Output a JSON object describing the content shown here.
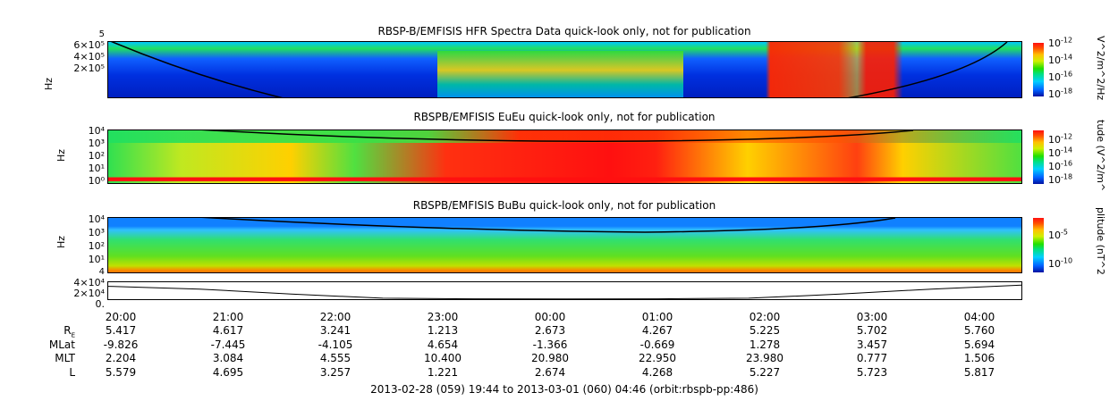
{
  "chart_data": [
    {
      "type": "heatmap",
      "title": "RBSP-B/EMFISIS  HFR Spectra Data quick-look only, not for publication",
      "ylabel": "Hz",
      "yticks": [
        "6×10⁵",
        "4×10⁵",
        "2×10⁵"
      ],
      "ytop_label": "5",
      "colorbar_label": "V^2/m^2/Hz",
      "colorbar_ticks": [
        "10-12",
        "10-14",
        "10-16",
        "10-18"
      ]
    },
    {
      "type": "heatmap",
      "title": "RBSPB/EMFISIS  EuEu quick-look only, not for publication",
      "ylabel": "Hz",
      "yticks": [
        "10⁴",
        "10³",
        "10²",
        "10¹",
        "10⁰"
      ],
      "colorbar_label": "tude (V^2/m^",
      "colorbar_ticks": [
        "10-12",
        "10-14",
        "10-16",
        "10-18"
      ]
    },
    {
      "type": "heatmap",
      "title": "RBSPB/EMFISIS  BuBu quick-look only, not for publication",
      "ylabel": "Hz",
      "yticks": [
        "10⁴",
        "10³",
        "10²",
        "10¹"
      ],
      "colorbar_label": "plitude (nT^2",
      "colorbar_ticks": [
        "10-5",
        "10-10"
      ]
    },
    {
      "type": "line",
      "yticks": [
        "4×10⁴",
        "2×10⁴",
        "0."
      ],
      "ytop_label": "4",
      "x": [
        "19:44",
        "20:00",
        "21:00",
        "22:00",
        "23:00",
        "00:00",
        "01:00",
        "02:00",
        "03:00",
        "04:00",
        "04:46"
      ],
      "values": [
        38000,
        30000,
        15000,
        3000,
        1000,
        500,
        1000,
        3000,
        15000,
        30000,
        42000
      ]
    }
  ],
  "cbar_ticks_fmt": {
    "p1": [
      [
        "10",
        "-12"
      ],
      [
        "10",
        "-14"
      ],
      [
        "10",
        "-16"
      ],
      [
        "10",
        "-18"
      ]
    ],
    "p2": [
      [
        "10",
        "-12"
      ],
      [
        "10",
        "-14"
      ],
      [
        "10",
        "-16"
      ],
      [
        "10",
        "-18"
      ]
    ],
    "p3": [
      [
        "10",
        "-5"
      ],
      [
        "10",
        "-10"
      ]
    ]
  },
  "times": [
    "20:00",
    "21:00",
    "22:00",
    "23:00",
    "00:00",
    "01:00",
    "02:00",
    "03:00",
    "04:00"
  ],
  "rows": [
    {
      "label": "R",
      "sub": "E",
      "values": [
        "5.417",
        "4.617",
        "3.241",
        "1.213",
        "2.673",
        "4.267",
        "5.225",
        "5.702",
        "5.760"
      ]
    },
    {
      "label": "MLat",
      "values": [
        "-9.826",
        "-7.445",
        "-4.105",
        "4.654",
        "-1.366",
        "-0.669",
        "1.278",
        "3.457",
        "5.694"
      ]
    },
    {
      "label": "MLT",
      "values": [
        "2.204",
        "3.084",
        "4.555",
        "10.400",
        "20.980",
        "22.950",
        "23.980",
        "0.777",
        "1.506"
      ]
    },
    {
      "label": "L",
      "values": [
        "5.579",
        "4.695",
        "3.257",
        "1.221",
        "2.674",
        "4.268",
        "5.227",
        "5.723",
        "5.817"
      ]
    }
  ],
  "caption": "2013-02-28 (059) 19:44 to 2013-03-01 (060) 04:46 (orbit:rbspb-pp:486)"
}
